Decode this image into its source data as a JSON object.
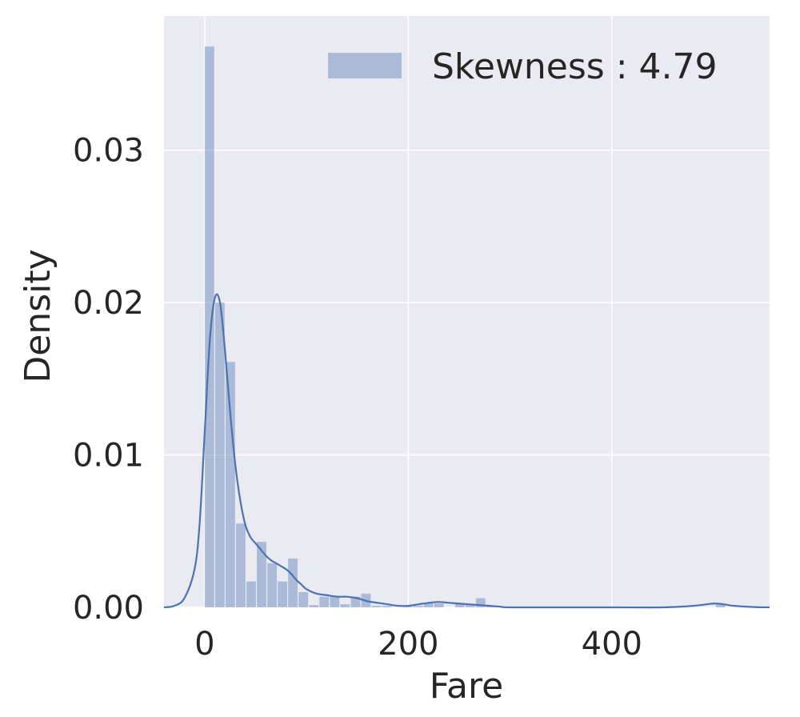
{
  "chart_data": {
    "type": "histogram",
    "xlabel": "Fare",
    "ylabel": "Density",
    "xlim": [
      -40,
      555
    ],
    "ylim": [
      0,
      0.0388
    ],
    "x_ticks": [
      0,
      200,
      400
    ],
    "y_ticks": [
      0.0,
      0.01,
      0.02,
      0.03
    ],
    "x_tick_labels": [
      "0",
      "200",
      "400"
    ],
    "y_tick_labels": [
      "0.00",
      "0.01",
      "0.02",
      "0.03"
    ],
    "grid": true,
    "legend": {
      "position": "top-right",
      "label": "Skewness : 4.79"
    },
    "series": [
      {
        "kind": "histogram",
        "bin_width": 10.25,
        "bins": [
          [
            0,
            0.0368
          ],
          [
            10.25,
            0.02
          ],
          [
            20.5,
            0.0161
          ],
          [
            30.75,
            0.0055
          ],
          [
            41,
            0.0017
          ],
          [
            51.25,
            0.0043
          ],
          [
            61.5,
            0.0029
          ],
          [
            71.75,
            0.0017
          ],
          [
            82,
            0.0032
          ],
          [
            92.25,
            0.001
          ],
          [
            102.5,
            0.00015
          ],
          [
            112.75,
            0.0007
          ],
          [
            123,
            0.0007
          ],
          [
            133.25,
            0.0002
          ],
          [
            143.5,
            0.0007
          ],
          [
            153.75,
            0.0009
          ],
          [
            164,
            0.0001
          ],
          [
            174.25,
            0.0001
          ],
          [
            184.5,
            0.0
          ],
          [
            194.75,
            5e-05
          ],
          [
            205,
            0.0001
          ],
          [
            215.25,
            0.0003
          ],
          [
            225.5,
            0.00025
          ],
          [
            235.75,
            0.0
          ],
          [
            246,
            0.00025
          ],
          [
            256.25,
            0.0002
          ],
          [
            266.5,
            0.0006
          ],
          [
            276.75,
            0.0001
          ],
          [
            502.25,
            0.0002
          ]
        ]
      },
      {
        "kind": "kde",
        "x": [
          -40,
          -30,
          -20,
          -10,
          -5,
          0,
          5,
          10,
          15,
          20,
          25,
          30,
          35,
          40,
          45,
          50,
          55,
          60,
          65,
          70,
          75,
          80,
          85,
          90,
          95,
          100,
          110,
          120,
          130,
          140,
          150,
          160,
          170,
          180,
          190,
          200,
          210,
          220,
          230,
          240,
          250,
          260,
          270,
          280,
          290,
          300,
          350,
          400,
          450,
          480,
          500,
          510,
          520,
          540,
          555
        ],
        "y": [
          0.0,
          0.0001,
          0.0006,
          0.0025,
          0.0055,
          0.0115,
          0.0175,
          0.0203,
          0.02,
          0.0168,
          0.0128,
          0.0094,
          0.007,
          0.0054,
          0.0046,
          0.0042,
          0.0038,
          0.0034,
          0.0031,
          0.0029,
          0.0027,
          0.0025,
          0.0022,
          0.0018,
          0.0015,
          0.0012,
          0.0009,
          0.0008,
          0.0007,
          0.0007,
          0.0006,
          0.0004,
          0.0003,
          0.0002,
          0.0001,
          0.0001,
          0.0002,
          0.0003,
          0.00035,
          0.0003,
          0.00025,
          0.0002,
          0.00015,
          0.0001,
          5e-05,
          0.0,
          0.0,
          0.0,
          0.0,
          0.0001,
          0.00025,
          0.0002,
          0.0001,
          2e-05,
          0.0
        ]
      }
    ],
    "colors": {
      "bars": "#4c72b0",
      "kde": "#4c72b0",
      "background": "#eaeaf2",
      "grid": "#ffffff"
    }
  }
}
